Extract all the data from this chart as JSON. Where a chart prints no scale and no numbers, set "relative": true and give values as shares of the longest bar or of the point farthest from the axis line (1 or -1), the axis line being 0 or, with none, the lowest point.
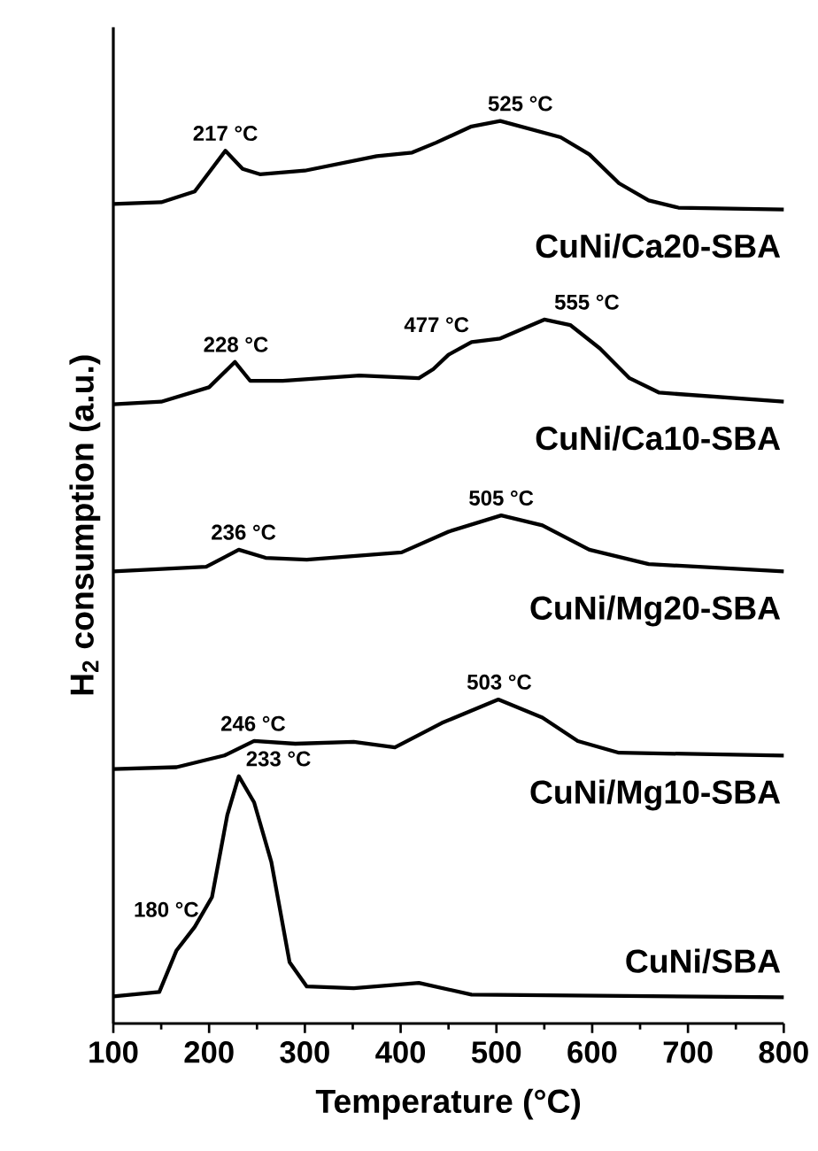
{
  "chart_data": {
    "type": "line",
    "relative": true,
    "xlabel": "Temperature (°C)",
    "ylabel": "H$_{2}$ consumption (a.u.)",
    "xlim": [
      100,
      800
    ],
    "xticks": [
      100,
      200,
      300,
      400,
      500,
      600,
      700,
      800
    ],
    "legend": false,
    "marker": "none",
    "line_style": "solid",
    "series": [
      {
        "name": "CuNi/Ca20-SBA",
        "color": "#000000",
        "x": [
          100,
          150,
          185,
          200,
          217,
          235,
          253,
          300,
          375,
          412,
          437,
          474,
          504,
          567,
          597,
          628,
          659,
          690,
          800
        ],
        "values": [
          0.908,
          0.91,
          0.922,
          0.943,
          0.967,
          0.947,
          0.941,
          0.945,
          0.961,
          0.965,
          0.976,
          0.994,
          1.0,
          0.982,
          0.963,
          0.931,
          0.912,
          0.904,
          0.902
        ]
      },
      {
        "name": "CuNi/Ca10-SBA",
        "color": "#000000",
        "x": [
          100,
          150,
          200,
          227,
          243,
          277,
          357,
          419,
          434,
          450,
          474,
          504,
          550,
          577,
          608,
          639,
          670,
          800
        ],
        "values": [
          0.686,
          0.689,
          0.705,
          0.733,
          0.712,
          0.712,
          0.718,
          0.715,
          0.725,
          0.741,
          0.755,
          0.759,
          0.78,
          0.774,
          0.748,
          0.715,
          0.699,
          0.689
        ]
      },
      {
        "name": "CuNi/Mg20-SBA",
        "color": "#000000",
        "x": [
          100,
          197,
          231,
          259,
          302,
          401,
          450,
          505,
          548,
          597,
          659,
          800
        ],
        "values": [
          0.501,
          0.506,
          0.525,
          0.516,
          0.514,
          0.522,
          0.545,
          0.563,
          0.552,
          0.525,
          0.509,
          0.501
        ]
      },
      {
        "name": "CuNi/Mg10-SBA",
        "color": "#000000",
        "x": [
          100,
          166,
          216,
          247,
          290,
          351,
          394,
          443,
          502,
          548,
          585,
          628,
          800
        ],
        "values": [
          0.282,
          0.284,
          0.297,
          0.313,
          0.31,
          0.312,
          0.306,
          0.333,
          0.359,
          0.339,
          0.313,
          0.3,
          0.297
        ]
      },
      {
        "name": "CuNi/SBA",
        "color": "#000000",
        "x": [
          100,
          148,
          166,
          185,
          203,
          219,
          231,
          247,
          265,
          284,
          302,
          351,
          419,
          474,
          800
        ],
        "values": [
          0.03,
          0.035,
          0.081,
          0.107,
          0.14,
          0.231,
          0.274,
          0.245,
          0.179,
          0.068,
          0.041,
          0.039,
          0.045,
          0.032,
          0.029
        ]
      }
    ],
    "annotations": [
      {
        "text": "217 °C",
        "x": 217,
        "y": 0.967
      },
      {
        "text": "525 °C",
        "x": 525,
        "y": 1.0
      },
      {
        "text": "228 °C",
        "x": 228,
        "y": 0.733
      },
      {
        "text": "477 °C",
        "x": 477,
        "y": 0.755
      },
      {
        "text": "555 °C",
        "x": 555,
        "y": 0.78
      },
      {
        "text": "236 °C",
        "x": 236,
        "y": 0.525
      },
      {
        "text": "505 °C",
        "x": 505,
        "y": 0.563
      },
      {
        "text": "246 °C",
        "x": 246,
        "y": 0.313
      },
      {
        "text": "503 °C",
        "x": 503,
        "y": 0.359
      },
      {
        "text": "233 °C",
        "x": 233,
        "y": 0.274
      },
      {
        "text": "180 °C",
        "x": 180,
        "y": 0.107
      }
    ]
  }
}
